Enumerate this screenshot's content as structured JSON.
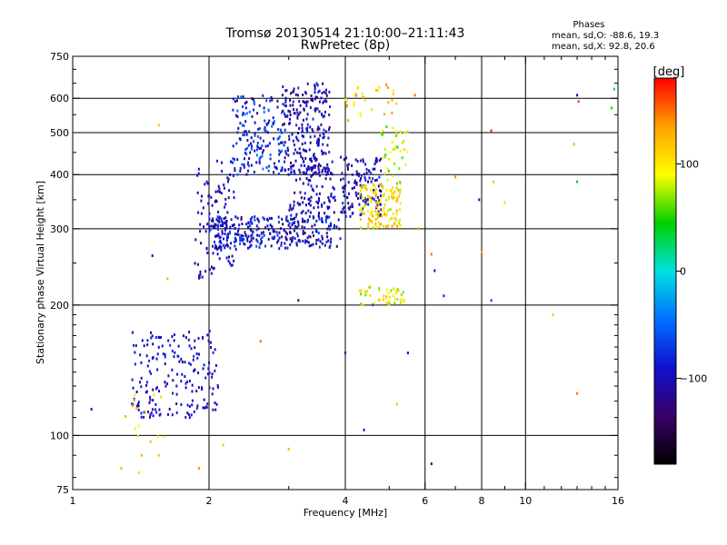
{
  "chart_data": {
    "type": "scatter",
    "title": "Tromsø 20130514 21:10:00–21:11:43",
    "subtitle": "RwPretec (8p)",
    "stats": {
      "heading": "Phases",
      "line1": "mean, sd,O: -88.6, 19.3",
      "line2": "mean, sd,X:  92.8, 20.6"
    },
    "xlabel": "Frequency [MHz]",
    "ylabel": "Stationary phase Virtual Height [km]",
    "x_scale": "log",
    "y_scale": "log",
    "xlim": [
      1,
      16
    ],
    "ylim": [
      75,
      750
    ],
    "x_ticks": [
      1,
      2,
      4,
      6,
      8,
      10,
      16
    ],
    "x_tick_labels": [
      "1",
      "2",
      "4",
      "6",
      "8",
      "10",
      "16"
    ],
    "x_gridlines": [
      2,
      4,
      6,
      8,
      10
    ],
    "y_ticks": [
      75,
      100,
      200,
      300,
      400,
      500,
      600,
      750
    ],
    "y_tick_labels": [
      "75",
      "100",
      "200",
      "300",
      "400",
      "500",
      "600",
      "750"
    ],
    "y_gridlines": [
      100,
      200,
      300,
      400,
      500,
      600
    ],
    "grid": true,
    "colorbar": {
      "label": "[deg]",
      "range": [
        -180,
        180
      ],
      "ticks": [
        100,
        0,
        -100
      ],
      "tick_labels": [
        "100",
        "0",
        "−100"
      ],
      "colors": [
        "#000000",
        "#3a0066",
        "#1010d0",
        "#0070ff",
        "#00e0e0",
        "#00d000",
        "#ffff00",
        "#ffa000",
        "#ff0000"
      ]
    },
    "clusters": [
      {
        "name": "lowE",
        "f": [
          1.35,
          2.1
        ],
        "h": [
          110,
          175
        ],
        "n": 190,
        "phase": [
          -115,
          -75
        ]
      },
      {
        "name": "lowE_x",
        "f": [
          1.3,
          1.6
        ],
        "h": [
          95,
          125
        ],
        "n": 14,
        "phase": [
          80,
          140
        ]
      },
      {
        "name": "F_left_rise",
        "f": [
          1.85,
          2.3
        ],
        "h": [
          230,
          430
        ],
        "n": 110,
        "phase": [
          -120,
          -80
        ]
      },
      {
        "name": "F_band_300",
        "f": [
          2.0,
          3.9
        ],
        "h": [
          270,
          320
        ],
        "n": 320,
        "phase": [
          -130,
          -60
        ]
      },
      {
        "name": "F_upper_a",
        "f": [
          2.25,
          2.9
        ],
        "h": [
          400,
          610
        ],
        "n": 160,
        "phase": [
          -120,
          -40
        ]
      },
      {
        "name": "F_upper_b",
        "f": [
          2.9,
          3.7
        ],
        "h": [
          400,
          650
        ],
        "n": 230,
        "phase": [
          -130,
          -70
        ]
      },
      {
        "name": "F_mid",
        "f": [
          3.0,
          3.8
        ],
        "h": [
          320,
          440
        ],
        "n": 110,
        "phase": [
          -125,
          -80
        ]
      },
      {
        "name": "F2_trace",
        "f": [
          3.9,
          4.8
        ],
        "h": [
          320,
          440
        ],
        "n": 130,
        "phase": [
          -125,
          -75
        ]
      },
      {
        "name": "F2_x",
        "f": [
          4.3,
          5.3
        ],
        "h": [
          300,
          380
        ],
        "n": 130,
        "phase": [
          70,
          140
        ]
      },
      {
        "name": "F_x_upper",
        "f": [
          4.8,
          5.5
        ],
        "h": [
          380,
          520
        ],
        "n": 40,
        "phase": [
          50,
          110
        ]
      },
      {
        "name": "mid_x_band",
        "f": [
          4.3,
          5.4
        ],
        "h": [
          200,
          220
        ],
        "n": 45,
        "phase": [
          60,
          130
        ]
      },
      {
        "name": "F_upper_x",
        "f": [
          4.0,
          5.2
        ],
        "h": [
          530,
          650
        ],
        "n": 30,
        "phase": [
          80,
          140
        ]
      }
    ],
    "scattered_points": [
      {
        "f": 1.55,
        "h": 520,
        "phase": 120
      },
      {
        "f": 1.62,
        "h": 230,
        "phase": 130
      },
      {
        "f": 1.5,
        "h": 260,
        "phase": -100
      },
      {
        "f": 1.4,
        "h": 82,
        "phase": 110
      },
      {
        "f": 1.42,
        "h": 90,
        "phase": 130
      },
      {
        "f": 1.55,
        "h": 90,
        "phase": 120
      },
      {
        "f": 1.28,
        "h": 84,
        "phase": 130
      },
      {
        "f": 1.1,
        "h": 115,
        "phase": -100
      },
      {
        "f": 1.9,
        "h": 84,
        "phase": 140
      },
      {
        "f": 2.15,
        "h": 95,
        "phase": 120
      },
      {
        "f": 2.6,
        "h": 165,
        "phase": 150
      },
      {
        "f": 3.0,
        "h": 93,
        "phase": 130
      },
      {
        "f": 3.15,
        "h": 205,
        "phase": -120
      },
      {
        "f": 4.0,
        "h": 155,
        "phase": -110
      },
      {
        "f": 4.4,
        "h": 103,
        "phase": -90
      },
      {
        "f": 4.6,
        "h": 200,
        "phase": -60
      },
      {
        "f": 5.2,
        "h": 118,
        "phase": 120
      },
      {
        "f": 5.5,
        "h": 155,
        "phase": -100
      },
      {
        "f": 5.7,
        "h": 610,
        "phase": 150
      },
      {
        "f": 5.8,
        "h": 300,
        "phase": 130
      },
      {
        "f": 6.2,
        "h": 262,
        "phase": 150
      },
      {
        "f": 6.2,
        "h": 86,
        "phase": -120
      },
      {
        "f": 6.3,
        "h": 240,
        "phase": -110
      },
      {
        "f": 6.6,
        "h": 210,
        "phase": -80
      },
      {
        "f": 7.0,
        "h": 395,
        "phase": 140
      },
      {
        "f": 7.9,
        "h": 350,
        "phase": -110
      },
      {
        "f": 8.0,
        "h": 265,
        "phase": 140
      },
      {
        "f": 8.4,
        "h": 505,
        "phase": 170
      },
      {
        "f": 8.5,
        "h": 385,
        "phase": 120
      },
      {
        "f": 8.4,
        "h": 205,
        "phase": -70
      },
      {
        "f": 9.0,
        "h": 345,
        "phase": 110
      },
      {
        "f": 11.5,
        "h": 190,
        "phase": 120
      },
      {
        "f": 12.8,
        "h": 470,
        "phase": 130
      },
      {
        "f": 13.0,
        "h": 610,
        "phase": -100
      },
      {
        "f": 13.1,
        "h": 590,
        "phase": 160
      },
      {
        "f": 13.0,
        "h": 385,
        "phase": 40
      },
      {
        "f": 13.0,
        "h": 125,
        "phase": 150
      },
      {
        "f": 15.5,
        "h": 570,
        "phase": 50
      },
      {
        "f": 15.7,
        "h": 630,
        "phase": 30
      }
    ]
  }
}
